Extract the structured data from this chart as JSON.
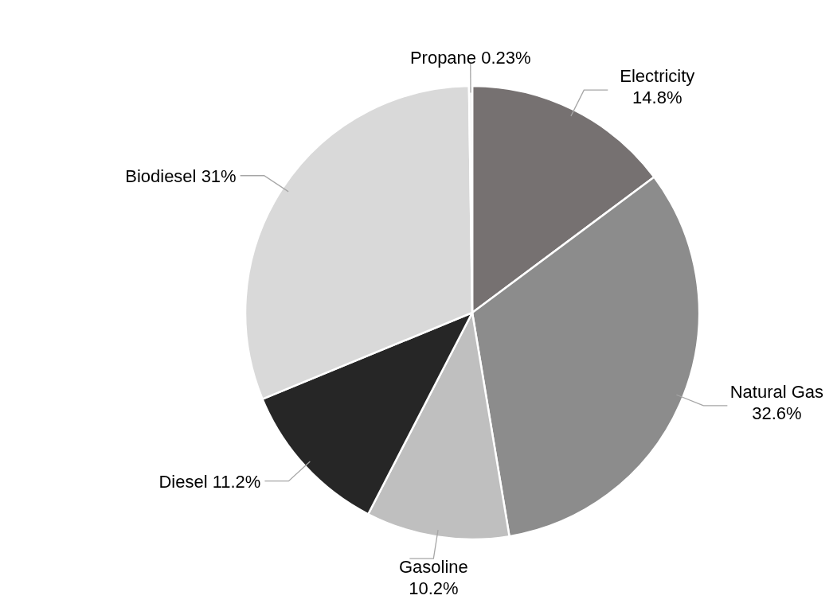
{
  "chart_data": {
    "type": "pie",
    "categories": [
      "Electricity",
      "Natural Gas",
      "Gasoline",
      "Diesel",
      "Biodiesel",
      "Propane"
    ],
    "values": [
      14.8,
      32.6,
      10.2,
      11.2,
      31,
      0.23
    ],
    "value_labels": [
      "14.8%",
      "32.6%",
      "10.2%",
      "11.2%",
      "31%",
      "0.23%"
    ],
    "colors": [
      "#767171",
      "#8c8c8c",
      "#bfbfbf",
      "#262626",
      "#d9d9d9",
      "#f2f2f2"
    ]
  }
}
